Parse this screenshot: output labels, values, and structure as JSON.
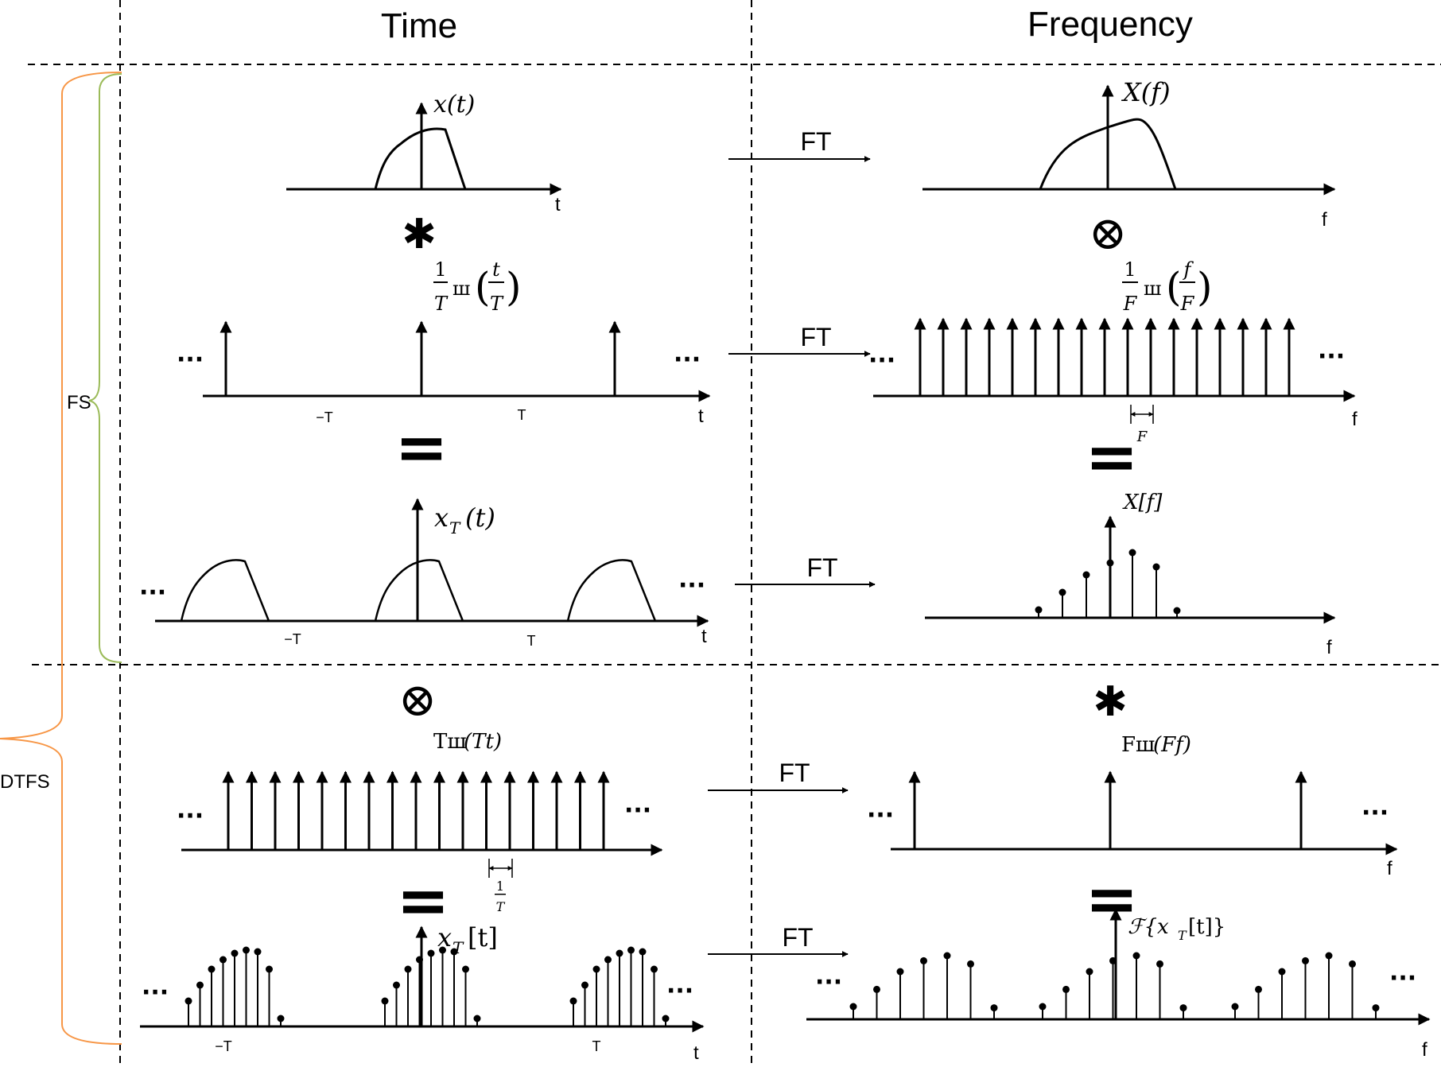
{
  "headers": {
    "time": "Time",
    "frequency": "Frequency"
  },
  "braces": {
    "fs": "FS",
    "dtfs": "DTFS",
    "fs_color": "#9bbb59",
    "dtfs_color": "#f79646"
  },
  "ft_label": "FT",
  "ops": {
    "convolve": "✱",
    "multiply": "⊗",
    "equals": "="
  },
  "ellipsis": "···",
  "axis": {
    "t": "t",
    "f": "f",
    "minus_T": "−T",
    "plus_T": "T"
  },
  "labels": {
    "x_t": "x(t)",
    "X_f": "X(f)",
    "comb_t": "1/T ш(t/T)",
    "comb_t_num": "1",
    "comb_t_den": "T",
    "comb_t_sha": "ш",
    "comb_t_arg_num": "t",
    "comb_t_arg_den": "T",
    "comb_f_num": "1",
    "comb_f_den": "F",
    "comb_f_sha": "ш",
    "comb_f_arg_num": "f",
    "comb_f_arg_den": "F",
    "spacing_F": "F",
    "x_T_t": "x",
    "x_T_t_sub": "T",
    "x_T_t_arg": "(t)",
    "X_bracket_f": "X[f]",
    "comb_Tt": "Tш(Tt)",
    "comb_Tt_pre": "Tш",
    "comb_Tt_arg": "(Tt)",
    "comb_Ff_pre": "Fш",
    "comb_Ff_arg": "(Ff)",
    "spacing_invT_num": "1",
    "spacing_invT_den": "T",
    "x_T_bracket": "x",
    "x_T_bracket_sub": "T",
    "x_T_bracket_arg": "[t]",
    "F_transform_pre": "ℱ{x",
    "F_transform_sub": "T",
    "F_transform_post": "[t]}"
  }
}
